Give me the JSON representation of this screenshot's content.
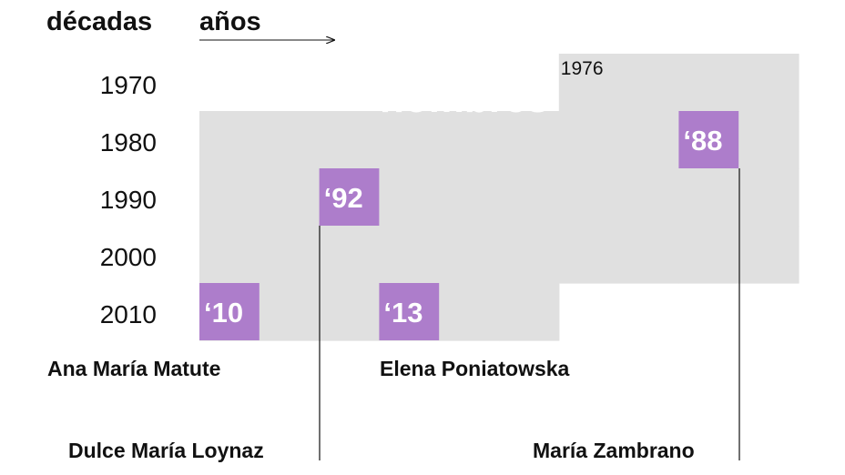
{
  "header": {
    "decades_label": "décadas",
    "years_label": "años"
  },
  "colors": {
    "grid_fill": "#e0e0e0",
    "highlight": "#ad7dcb",
    "text": "#111111",
    "watermark": "#ffffff"
  },
  "chart_data": {
    "type": "table",
    "rows": [
      "1970",
      "1980",
      "1990",
      "2000",
      "2010"
    ],
    "columns_per_row": 10,
    "area_label": "hombres",
    "area_start_label": "1976",
    "area_start_year": 1976,
    "area_end_year": 2015,
    "winners": [
      {
        "name": "Ana María Matute",
        "year": 2010,
        "label": "‘10"
      },
      {
        "name": "Dulce María Loynaz",
        "year": 1992,
        "label": "‘92"
      },
      {
        "name": "Elena Poniatowska",
        "year": 2013,
        "label": "‘13"
      },
      {
        "name": "María Zambrano",
        "year": 1988,
        "label": "‘88"
      }
    ]
  }
}
